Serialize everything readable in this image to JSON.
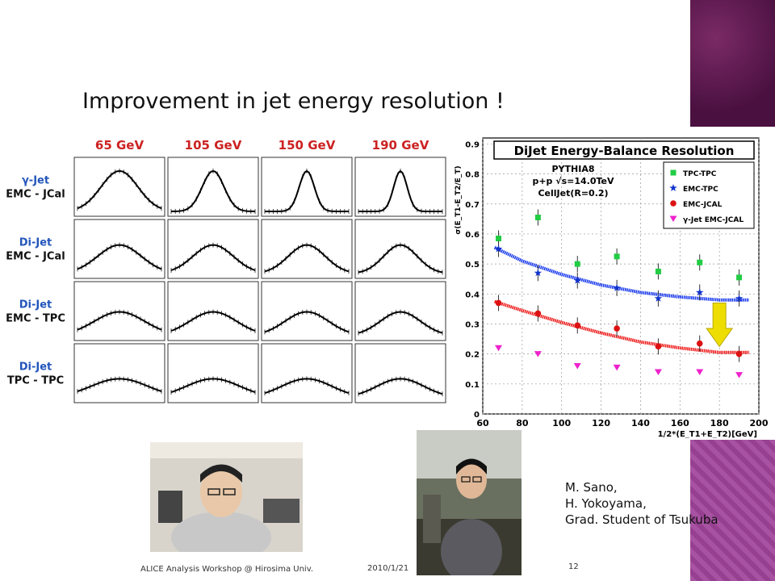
{
  "slide": {
    "title": "Improvement in jet energy resolution !",
    "credits": [
      "M. Sano,",
      "H. Yokoyama,",
      "Grad. Student of Tsukuba"
    ],
    "footer_left": "ALICE Analysis Workshop @ Hirosima Univ.",
    "footer_date": "2010/1/21",
    "page_number": "12"
  },
  "colors": {
    "deco_top": "#5a1a4a",
    "deco_bottom": "#a0449a",
    "energy_label": "#cc2222",
    "row_label": "#2255bb"
  },
  "grid": {
    "energies": [
      "65 GeV",
      "105 GeV",
      "150 GeV",
      "190 GeV"
    ],
    "rows": [
      {
        "line1": "γ-Jet",
        "line2": "EMC - JCal"
      },
      {
        "line1": "Di-Jet",
        "line2": "EMC - JCal"
      },
      {
        "line1": "Di-Jet",
        "line2": "EMC - TPC"
      },
      {
        "line1": "Di-Jet",
        "line2": "TPC - TPC"
      }
    ]
  },
  "chart_data": {
    "type": "scatter",
    "title": "DiJet Energy-Balance Resolution",
    "annotation": [
      "PYTHIA8",
      "p+p √s=14.0TeV",
      "CellJet(R=0.2)"
    ],
    "xlabel": "1/2*(E_T1+E_T2)[GeV]",
    "ylabel": "σ(E_T1-E_T2/E_T)",
    "xlim": [
      60,
      200
    ],
    "ylim": [
      0,
      0.92
    ],
    "xticks": [
      "60",
      "80",
      "100",
      "120",
      "140",
      "160",
      "180",
      "200"
    ],
    "yticks": [
      "0",
      "0.1",
      "0.2",
      "0.3",
      "0.4",
      "0.5",
      "0.6",
      "0.7",
      "0.8",
      "0.9"
    ],
    "grid": true,
    "legend_position": "top-right",
    "series": [
      {
        "name": "TPC-TPC",
        "color": "#22cc44",
        "marker": "square",
        "x": [
          68,
          88,
          108,
          128,
          149,
          170,
          190
        ],
        "y": [
          0.585,
          0.655,
          0.5,
          0.525,
          0.475,
          0.505,
          0.455
        ]
      },
      {
        "name": "EMC-TPC",
        "color": "#1133cc",
        "marker": "star",
        "x": [
          68,
          88,
          108,
          128,
          149,
          170,
          190
        ],
        "y": [
          0.55,
          0.47,
          0.445,
          0.42,
          0.385,
          0.405,
          0.385
        ]
      },
      {
        "name": "EMC-JCAL",
        "color": "#dd1111",
        "marker": "circle",
        "x": [
          68,
          88,
          108,
          128,
          149,
          170,
          190
        ],
        "y": [
          0.37,
          0.335,
          0.295,
          0.285,
          0.225,
          0.235,
          0.2
        ]
      },
      {
        "name": "γ-Jet EMC-JCAL",
        "color": "#ee22cc",
        "marker": "triangle",
        "x": [
          68,
          88,
          108,
          128,
          149,
          170,
          190
        ],
        "y": [
          0.22,
          0.2,
          0.16,
          0.155,
          0.14,
          0.14,
          0.13
        ]
      }
    ],
    "fits": [
      {
        "color": "#1133ee",
        "x": [
          66,
          80,
          100,
          120,
          140,
          160,
          180,
          195
        ],
        "y": [
          0.555,
          0.51,
          0.465,
          0.43,
          0.405,
          0.39,
          0.38,
          0.38
        ]
      },
      {
        "color": "#ee1111",
        "x": [
          66,
          80,
          100,
          120,
          140,
          160,
          180,
          195
        ],
        "y": [
          0.375,
          0.345,
          0.305,
          0.27,
          0.24,
          0.22,
          0.205,
          0.205
        ]
      }
    ],
    "arrow_color": "#eedd00"
  }
}
